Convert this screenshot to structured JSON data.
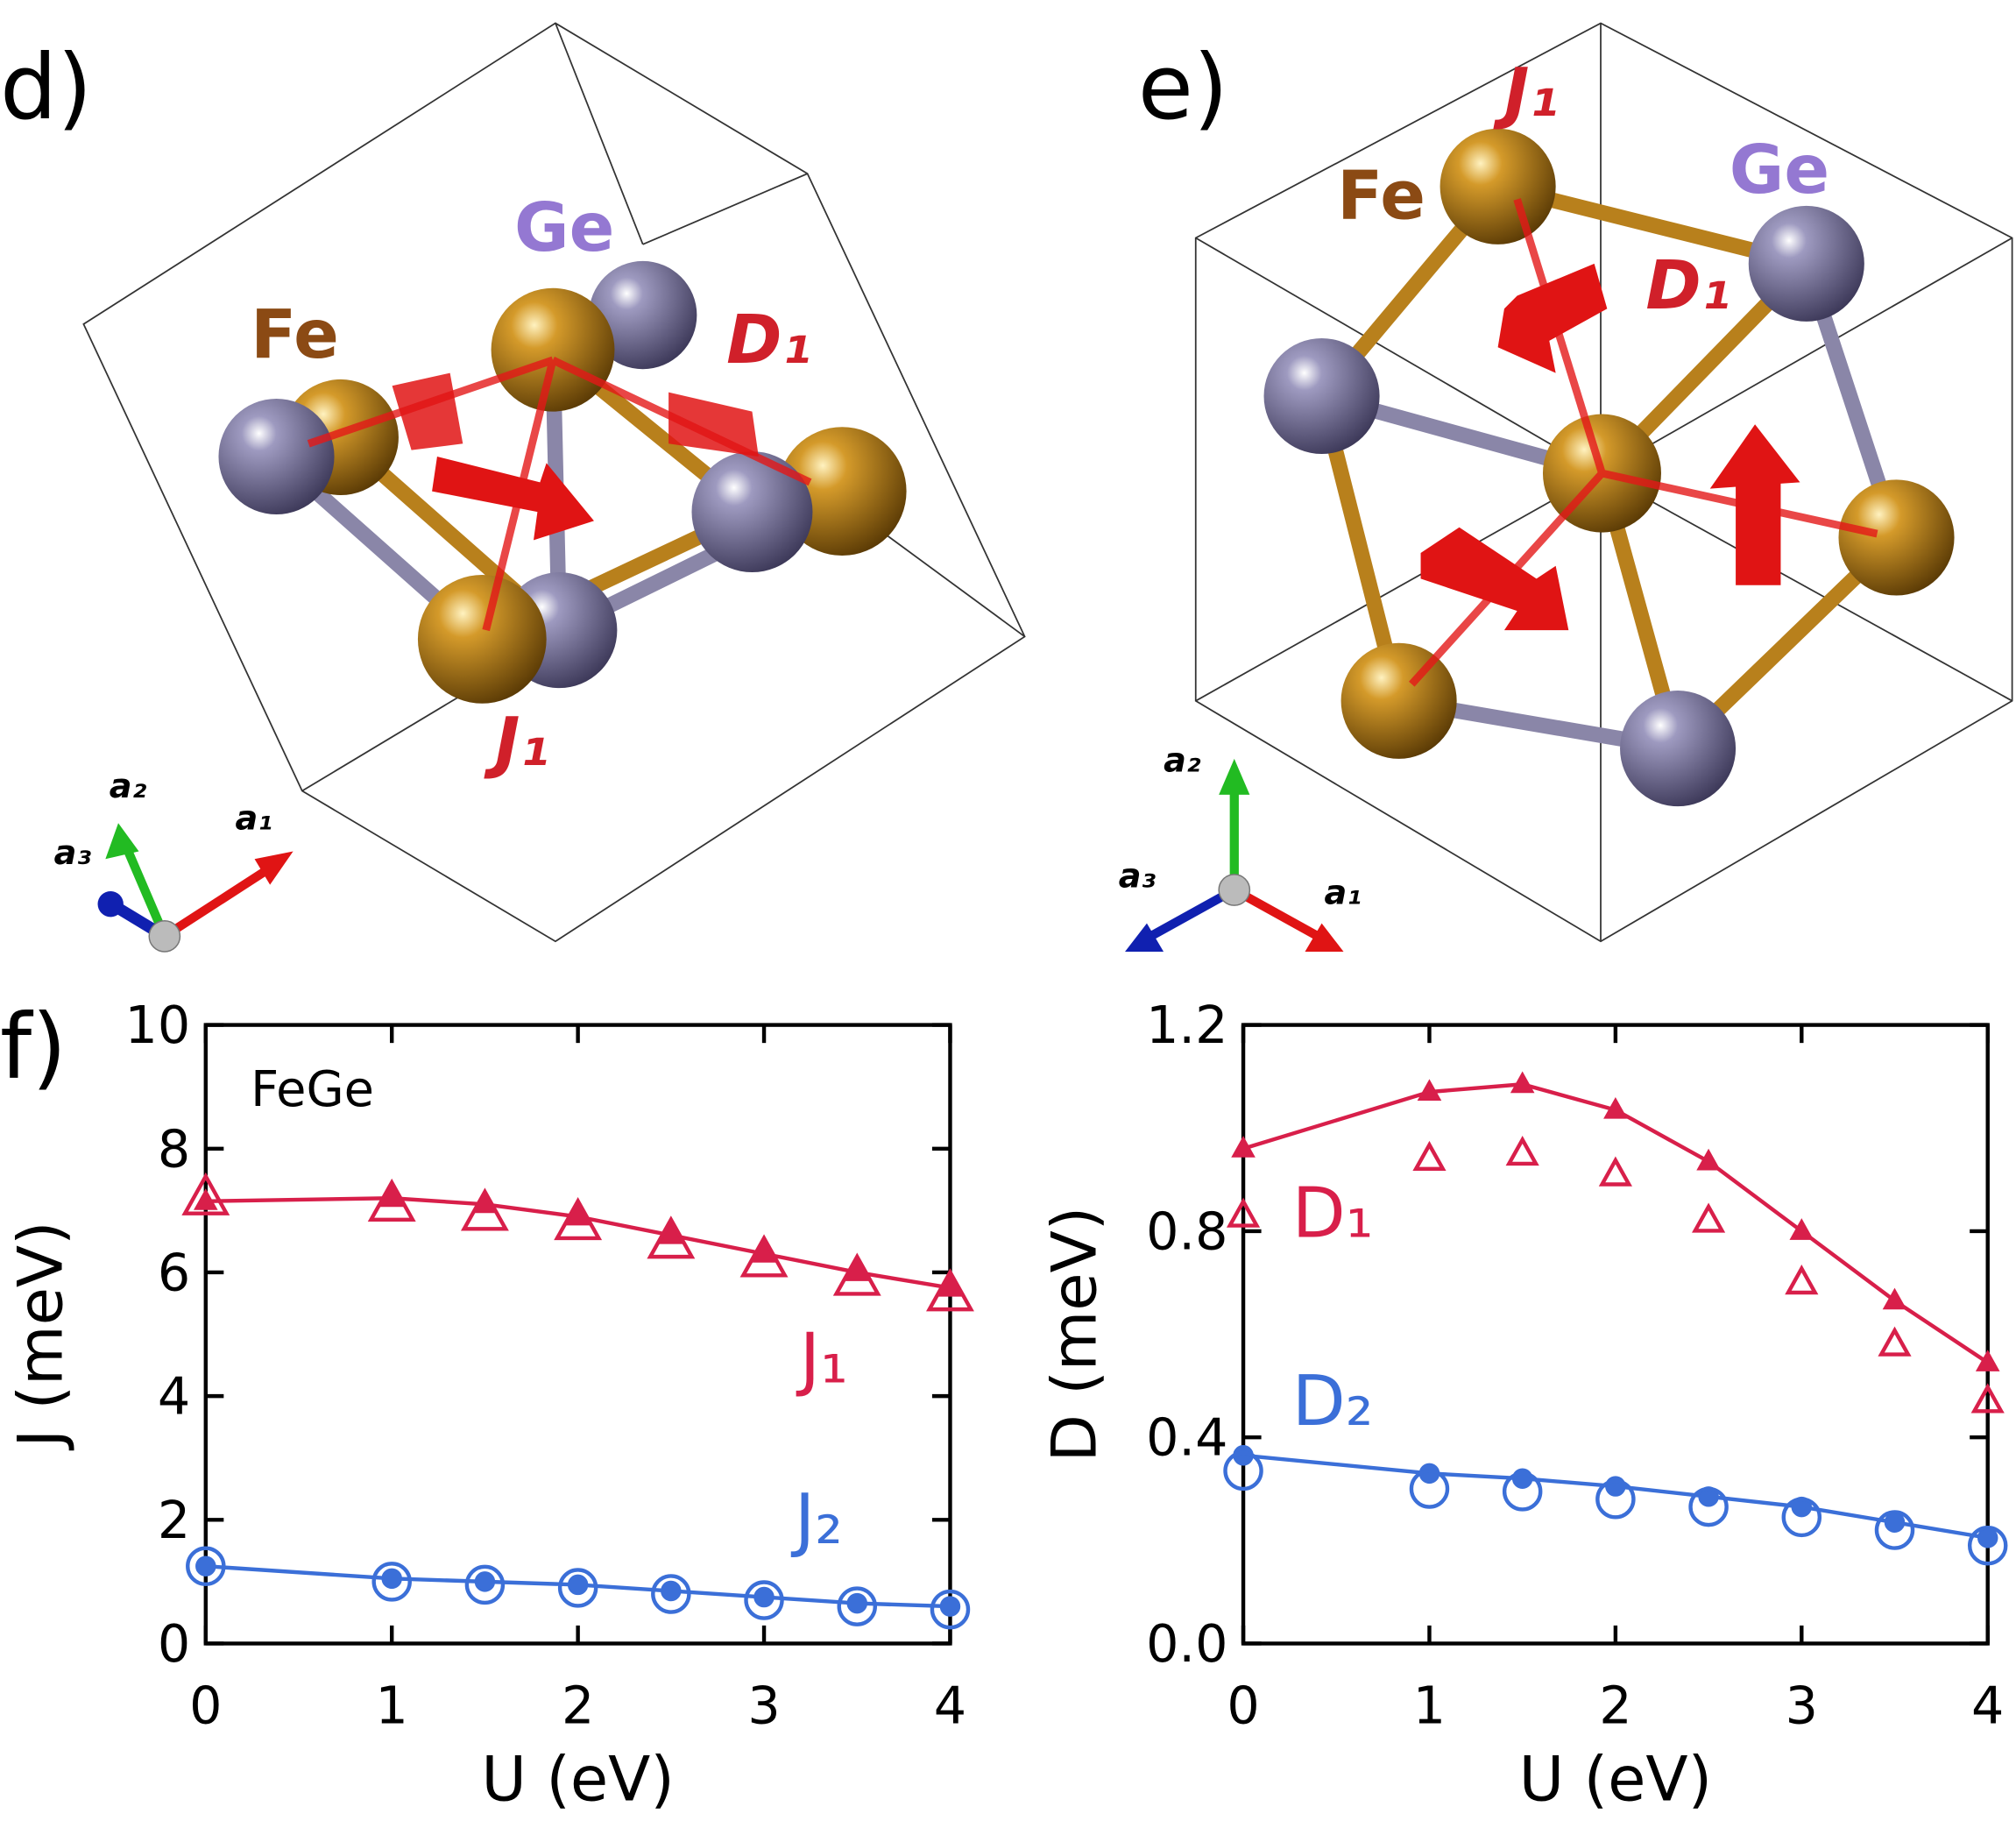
{
  "panels": {
    "d": {
      "label": "d)",
      "fe": "Fe",
      "ge": "Ge",
      "j": "J₁",
      "d": "D₁",
      "a1": "a₁",
      "a2": "a₂",
      "a3": "a₃"
    },
    "e": {
      "label": "e)",
      "fe": "Fe",
      "ge": "Ge",
      "j": "J₁",
      "d": "D₁",
      "a1": "a₁",
      "a2": "a₂",
      "a3": "a₃"
    },
    "f": {
      "label": "f)"
    }
  },
  "chart_data": [
    {
      "type": "line",
      "x_label": "U (eV)",
      "y_label": "J (meV)",
      "annotation": "FeGe",
      "x": [
        0,
        1,
        1.5,
        2,
        2.5,
        3,
        3.5,
        4
      ],
      "xlim": [
        0,
        4
      ],
      "ylim": [
        0,
        10
      ],
      "xticks": [
        0,
        1,
        2,
        3,
        4
      ],
      "yticks": [
        0,
        2,
        4,
        6,
        8,
        10
      ],
      "series": [
        {
          "name": "J₁",
          "color": "#d81f4a",
          "marker": "triangle",
          "filled": true,
          "line": true,
          "values": [
            7.15,
            7.2,
            7.1,
            6.9,
            6.6,
            6.3,
            6.0,
            5.75
          ]
        },
        {
          "color": "#d81f4a",
          "marker": "triangle",
          "filled": false,
          "line": false,
          "values": [
            7.2,
            7.1,
            6.95,
            6.8,
            6.5,
            6.2,
            5.9,
            5.65
          ]
        },
        {
          "name": "J₂",
          "color": "#3b6fd8",
          "marker": "circle",
          "filled": true,
          "line": true,
          "values": [
            1.25,
            1.05,
            1.0,
            0.95,
            0.85,
            0.75,
            0.65,
            0.6
          ]
        },
        {
          "color": "#3b6fd8",
          "marker": "circle",
          "filled": false,
          "line": false,
          "values": [
            1.25,
            1.0,
            0.95,
            0.9,
            0.8,
            0.7,
            0.6,
            0.55
          ]
        }
      ]
    },
    {
      "type": "line",
      "x_label": "U (eV)",
      "y_label": "D (meV)",
      "x": [
        0,
        1,
        1.5,
        2,
        2.5,
        3,
        3.5,
        4
      ],
      "xlim": [
        0,
        4
      ],
      "ylim": [
        0,
        1.2
      ],
      "xticks": [
        0,
        1,
        2,
        3,
        4
      ],
      "yticks": [
        {
          "value": 0,
          "label": "0.0"
        },
        0.4,
        0.8,
        1.2
      ],
      "series": [
        {
          "name": "D₁",
          "color": "#d81f4a",
          "marker": "triangle",
          "filled": true,
          "line": true,
          "values": [
            0.96,
            1.07,
            1.085,
            1.035,
            0.935,
            0.8,
            0.665,
            0.545
          ]
        },
        {
          "color": "#d81f4a",
          "marker": "triangle",
          "filled": false,
          "line": false,
          "values": [
            0.83,
            0.94,
            0.95,
            0.91,
            0.82,
            0.7,
            0.58,
            0.47
          ]
        },
        {
          "name": "D₂",
          "color": "#3b6fd8",
          "marker": "circle",
          "filled": true,
          "line": true,
          "values": [
            0.365,
            0.33,
            0.32,
            0.305,
            0.285,
            0.265,
            0.235,
            0.205
          ]
        },
        {
          "color": "#3b6fd8",
          "marker": "circle",
          "filled": false,
          "line": false,
          "values": [
            0.335,
            0.3,
            0.295,
            0.28,
            0.265,
            0.245,
            0.22,
            0.19
          ]
        }
      ]
    }
  ]
}
